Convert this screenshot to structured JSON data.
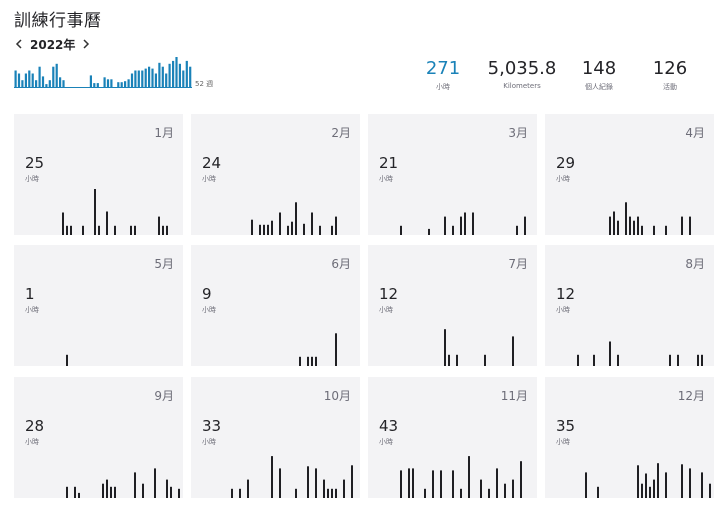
{
  "title": "訓練行事曆",
  "year_nav": {
    "label": "2022年"
  },
  "weekly": {
    "color": "#1a82b8",
    "weeks_label": "52 週",
    "values": [
      17,
      14,
      7,
      14,
      17,
      14,
      7,
      21,
      11,
      3,
      7,
      21,
      24,
      10,
      7,
      0,
      0,
      0,
      0,
      0,
      0,
      0,
      12,
      4,
      4,
      0,
      10,
      8,
      8,
      0,
      5,
      5,
      6,
      8,
      14,
      17,
      17,
      17,
      19,
      21,
      19,
      14,
      25,
      21,
      14,
      24,
      27,
      31,
      24,
      17,
      27,
      21
    ]
  },
  "stats": [
    {
      "value": "271",
      "label": "小時",
      "accent": true
    },
    {
      "value": "5,035.8",
      "label": "Kilometers",
      "accent": false
    },
    {
      "value": "148",
      "label": "個人紀錄",
      "accent": false
    },
    {
      "value": "126",
      "label": "活動",
      "accent": false
    }
  ],
  "months": [
    {
      "name": "1月",
      "hours": "25",
      "unit": "小時",
      "bars": [
        {
          "day": 7,
          "v": 22
        },
        {
          "day": 8,
          "v": 9
        },
        {
          "day": 9,
          "v": 9
        },
        {
          "day": 12,
          "v": 9
        },
        {
          "day": 15,
          "v": 45
        },
        {
          "day": 16,
          "v": 9
        },
        {
          "day": 18,
          "v": 23
        },
        {
          "day": 20,
          "v": 9
        },
        {
          "day": 24,
          "v": 9
        },
        {
          "day": 25,
          "v": 9
        },
        {
          "day": 31,
          "v": 18
        },
        {
          "day": 32,
          "v": 9
        },
        {
          "day": 33,
          "v": 9
        }
      ]
    },
    {
      "name": "2月",
      "hours": "24",
      "unit": "小時",
      "bars": [
        {
          "day": 10,
          "v": 15
        },
        {
          "day": 12,
          "v": 10
        },
        {
          "day": 13,
          "v": 10
        },
        {
          "day": 14,
          "v": 10
        },
        {
          "day": 15,
          "v": 14
        },
        {
          "day": 17,
          "v": 22
        },
        {
          "day": 19,
          "v": 9
        },
        {
          "day": 20,
          "v": 13
        },
        {
          "day": 21,
          "v": 32
        },
        {
          "day": 23,
          "v": 11
        },
        {
          "day": 25,
          "v": 22
        },
        {
          "day": 27,
          "v": 9
        },
        {
          "day": 30,
          "v": 9
        },
        {
          "day": 31,
          "v": 18
        }
      ]
    },
    {
      "name": "3月",
      "hours": "21",
      "unit": "小時",
      "bars": [
        {
          "day": 3,
          "v": 9
        },
        {
          "day": 10,
          "v": 6
        },
        {
          "day": 14,
          "v": 18
        },
        {
          "day": 16,
          "v": 9
        },
        {
          "day": 18,
          "v": 18
        },
        {
          "day": 19,
          "v": 22
        },
        {
          "day": 21,
          "v": 22
        },
        {
          "day": 32,
          "v": 9
        },
        {
          "day": 34,
          "v": 18
        }
      ]
    },
    {
      "name": "4月",
      "hours": "29",
      "unit": "小時",
      "bars": [
        {
          "day": 11,
          "v": 18
        },
        {
          "day": 12,
          "v": 23
        },
        {
          "day": 13,
          "v": 14
        },
        {
          "day": 15,
          "v": 32
        },
        {
          "day": 16,
          "v": 18
        },
        {
          "day": 17,
          "v": 14
        },
        {
          "day": 18,
          "v": 18
        },
        {
          "day": 19,
          "v": 9
        },
        {
          "day": 22,
          "v": 9
        },
        {
          "day": 25,
          "v": 9
        },
        {
          "day": 29,
          "v": 18
        },
        {
          "day": 31,
          "v": 18
        }
      ]
    },
    {
      "name": "5月",
      "hours": "1",
      "unit": "小時",
      "bars": [
        {
          "day": 8,
          "v": 11
        }
      ]
    },
    {
      "name": "6月",
      "hours": "9",
      "unit": "小時",
      "bars": [
        {
          "day": 22,
          "v": 9
        },
        {
          "day": 24,
          "v": 9
        },
        {
          "day": 25,
          "v": 9
        },
        {
          "day": 26,
          "v": 9
        },
        {
          "day": 31,
          "v": 32
        }
      ]
    },
    {
      "name": "7月",
      "hours": "12",
      "unit": "小時",
      "bars": [
        {
          "day": 14,
          "v": 36
        },
        {
          "day": 15,
          "v": 11
        },
        {
          "day": 17,
          "v": 11
        },
        {
          "day": 24,
          "v": 11
        },
        {
          "day": 31,
          "v": 29
        }
      ]
    },
    {
      "name": "8月",
      "hours": "12",
      "unit": "小時",
      "bars": [
        {
          "day": 3,
          "v": 11
        },
        {
          "day": 7,
          "v": 11
        },
        {
          "day": 11,
          "v": 24
        },
        {
          "day": 13,
          "v": 11
        },
        {
          "day": 26,
          "v": 11
        },
        {
          "day": 28,
          "v": 11
        },
        {
          "day": 33,
          "v": 11
        },
        {
          "day": 34,
          "v": 11
        }
      ]
    },
    {
      "name": "9月",
      "hours": "28",
      "unit": "小時",
      "bars": [
        {
          "day": 8,
          "v": 11
        },
        {
          "day": 10,
          "v": 11
        },
        {
          "day": 11,
          "v": 5
        },
        {
          "day": 17,
          "v": 14
        },
        {
          "day": 18,
          "v": 18
        },
        {
          "day": 19,
          "v": 11
        },
        {
          "day": 20,
          "v": 11
        },
        {
          "day": 25,
          "v": 25
        },
        {
          "day": 27,
          "v": 14
        },
        {
          "day": 30,
          "v": 29
        },
        {
          "day": 33,
          "v": 18
        },
        {
          "day": 34,
          "v": 11
        },
        {
          "day": 36,
          "v": 9
        }
      ]
    },
    {
      "name": "10月",
      "hours": "33",
      "unit": "小時",
      "bars": [
        {
          "day": 5,
          "v": 9
        },
        {
          "day": 7,
          "v": 9
        },
        {
          "day": 9,
          "v": 18
        },
        {
          "day": 15,
          "v": 41
        },
        {
          "day": 17,
          "v": 29
        },
        {
          "day": 21,
          "v": 9
        },
        {
          "day": 24,
          "v": 31
        },
        {
          "day": 26,
          "v": 29
        },
        {
          "day": 28,
          "v": 18
        },
        {
          "day": 29,
          "v": 9
        },
        {
          "day": 30,
          "v": 9
        },
        {
          "day": 31,
          "v": 9
        },
        {
          "day": 33,
          "v": 18
        },
        {
          "day": 35,
          "v": 32
        }
      ]
    },
    {
      "name": "11月",
      "hours": "43",
      "unit": "小時",
      "bars": [
        {
          "day": 3,
          "v": 27
        },
        {
          "day": 5,
          "v": 29
        },
        {
          "day": 6,
          "v": 29
        },
        {
          "day": 9,
          "v": 9
        },
        {
          "day": 11,
          "v": 27
        },
        {
          "day": 13,
          "v": 27
        },
        {
          "day": 16,
          "v": 27
        },
        {
          "day": 18,
          "v": 9
        },
        {
          "day": 20,
          "v": 41
        },
        {
          "day": 23,
          "v": 18
        },
        {
          "day": 25,
          "v": 9
        },
        {
          "day": 27,
          "v": 29
        },
        {
          "day": 29,
          "v": 14
        },
        {
          "day": 31,
          "v": 18
        },
        {
          "day": 33,
          "v": 36
        }
      ]
    },
    {
      "name": "12月",
      "hours": "35",
      "unit": "小時",
      "bars": [
        {
          "day": 5,
          "v": 25
        },
        {
          "day": 8,
          "v": 11
        },
        {
          "day": 18,
          "v": 32
        },
        {
          "day": 19,
          "v": 14
        },
        {
          "day": 20,
          "v": 24
        },
        {
          "day": 21,
          "v": 11
        },
        {
          "day": 22,
          "v": 18
        },
        {
          "day": 23,
          "v": 34
        },
        {
          "day": 25,
          "v": 25
        },
        {
          "day": 29,
          "v": 33
        },
        {
          "day": 31,
          "v": 29
        },
        {
          "day": 34,
          "v": 25
        },
        {
          "day": 36,
          "v": 14
        },
        {
          "day": 38,
          "v": 9
        }
      ]
    }
  ]
}
